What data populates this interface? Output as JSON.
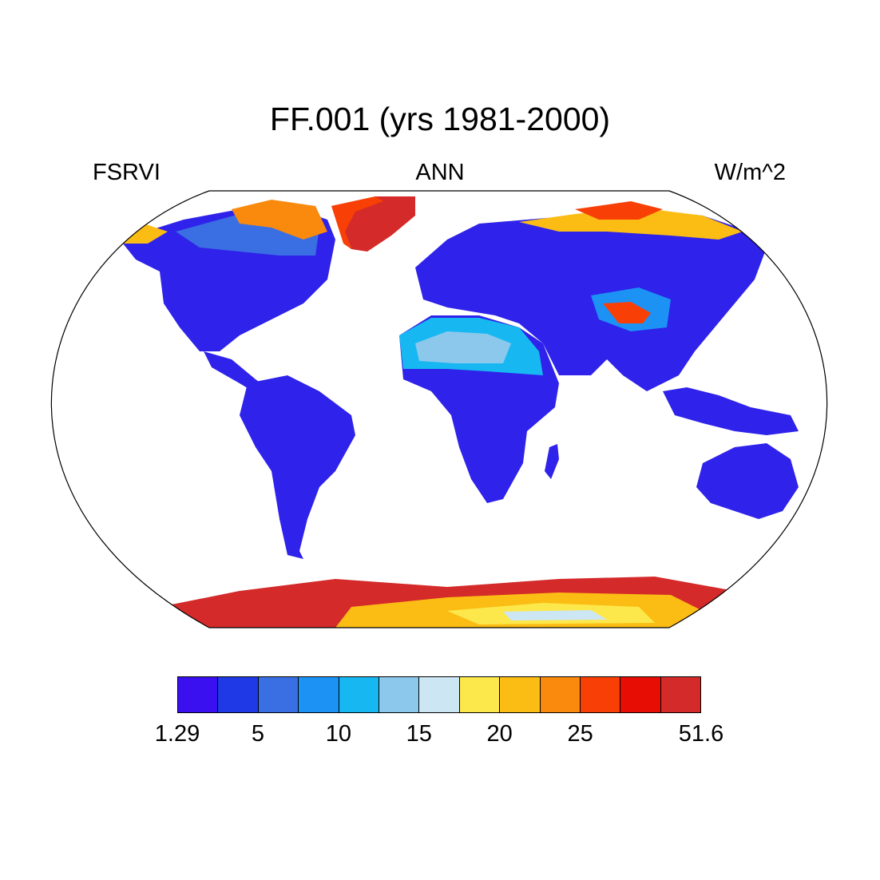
{
  "title": "FF.001 (yrs 1981-2000)",
  "left_label": "FSRVI",
  "center_label": "ANN",
  "right_label": "W/m^2",
  "projection": "Robinson",
  "colorbar": {
    "colors": [
      "#3a10f0",
      "#2039e6",
      "#3a6ee3",
      "#1c92f5",
      "#17b8f2",
      "#8cc8ec",
      "#cce6f4",
      "#fde84c",
      "#fbbd14",
      "#f98a0d",
      "#f84006",
      "#e80d04",
      "#d42a2a"
    ],
    "labels": [
      {
        "text": "1.29",
        "boundary": 0
      },
      {
        "text": "5",
        "boundary": 2
      },
      {
        "text": "10",
        "boundary": 4
      },
      {
        "text": "15",
        "boundary": 6
      },
      {
        "text": "20",
        "boundary": 8
      },
      {
        "text": "25",
        "boundary": 10
      },
      {
        "text": "51.6",
        "boundary": 13
      }
    ]
  }
}
